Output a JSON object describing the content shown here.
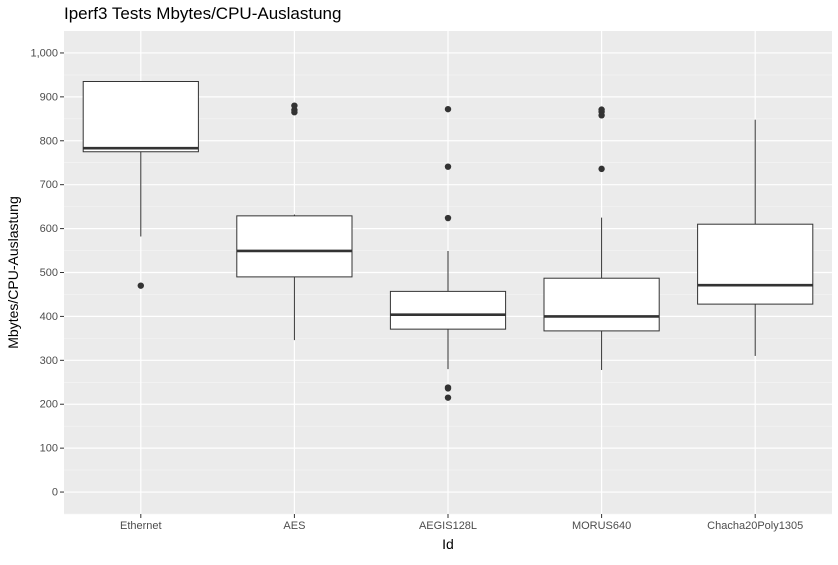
{
  "chart_data": {
    "type": "box",
    "title": "Iperf3 Tests Mbytes/CPU-Auslastung",
    "xlabel": "Id",
    "ylabel": "Mbytes/CPU-Auslastung",
    "ylim": [
      -50,
      1050
    ],
    "yticks": [
      0,
      100,
      200,
      300,
      400,
      500,
      600,
      700,
      800,
      900,
      1000
    ],
    "ytick_labels": [
      "0",
      "100",
      "200",
      "300",
      "400",
      "500",
      "600",
      "700",
      "800",
      "900",
      "1,000"
    ],
    "grid": true,
    "categories": [
      "Ethernet",
      "AES",
      "AEGIS128L",
      "MORUS640",
      "Chacha20Poly1305"
    ],
    "boxes": [
      {
        "category": "Ethernet",
        "whisker_low": 582,
        "q1": 775,
        "median": 783,
        "q3": 935,
        "whisker_high": 935,
        "outliers": [
          470
        ]
      },
      {
        "category": "AES",
        "whisker_low": 346,
        "q1": 490,
        "median": 549,
        "q3": 629,
        "whisker_high": 632,
        "outliers": [
          865,
          870,
          880
        ]
      },
      {
        "category": "AEGIS128L",
        "whisker_low": 280,
        "q1": 371,
        "median": 404,
        "q3": 457,
        "whisker_high": 549,
        "outliers": [
          215,
          236,
          238,
          624,
          741,
          872
        ]
      },
      {
        "category": "MORUS640",
        "whisker_low": 278,
        "q1": 367,
        "median": 400,
        "q3": 487,
        "whisker_high": 625,
        "outliers": [
          736,
          858,
          866,
          871
        ]
      },
      {
        "category": "Chacha20Poly1305",
        "whisker_low": 310,
        "q1": 428,
        "median": 471,
        "q3": 610,
        "whisker_high": 848,
        "outliers": []
      }
    ]
  }
}
